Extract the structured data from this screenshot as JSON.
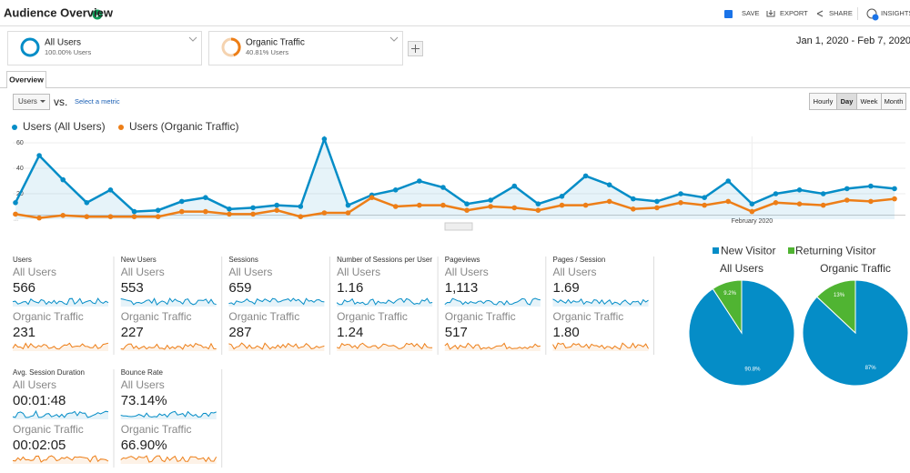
{
  "header": {
    "title": "Audience Overview",
    "actions": [
      "SAVE",
      "EXPORT",
      "SHARE",
      "INSIGHTS"
    ]
  },
  "segments": [
    {
      "name": "All Users",
      "detail": "100.00% Users"
    },
    {
      "name": "Organic Traffic",
      "detail": "40.81% Users"
    }
  ],
  "date_range": "Jan 1, 2020 - Feb 7, 2020",
  "tab": "Overview",
  "controls": {
    "metric": "Users",
    "vs": "vs.",
    "select": "Select a metric",
    "intervals": [
      "Hourly",
      "Day",
      "Week",
      "Month"
    ],
    "selected": "Day"
  },
  "chart_data": [
    {
      "type": "line",
      "series": [
        {
          "name": "Users (All Users)",
          "color": "#058dc7",
          "values": [
            13,
            50,
            31,
            13,
            23,
            6,
            7,
            14,
            17,
            8,
            9,
            11,
            10,
            63,
            11,
            19,
            23,
            30,
            25,
            12,
            15,
            26,
            12,
            18,
            34,
            27,
            16,
            14,
            20,
            17,
            30,
            12,
            20,
            23,
            20,
            24,
            26,
            24
          ]
        },
        {
          "name": "Users (Organic Traffic)",
          "color": "#ed7e17",
          "values": [
            4,
            1,
            3,
            2,
            2,
            2,
            2,
            6,
            6,
            4,
            4,
            7,
            2,
            5,
            5,
            17,
            10,
            11,
            11,
            7,
            10,
            9,
            7,
            11,
            11,
            14,
            8,
            9,
            13,
            11,
            14,
            6,
            13,
            12,
            11,
            15,
            14,
            16
          ]
        }
      ],
      "categories": [
        null,
        null,
        null,
        null,
        null,
        null,
        null,
        null,
        null,
        null,
        null,
        null,
        null,
        null,
        null,
        null,
        null,
        null,
        null,
        null,
        null,
        null,
        null,
        null,
        null,
        null,
        null,
        null,
        null,
        null,
        null,
        "February 2020",
        null,
        null,
        null,
        null,
        null,
        null
      ],
      "ylim": [
        0,
        65
      ],
      "yticks": [
        20,
        40,
        60
      ],
      "grid": true,
      "annotation": "..."
    },
    {
      "type": "pie",
      "title": "All Users",
      "values": [
        90.8,
        9.2
      ],
      "value_labels": [
        "90.8%",
        "9.2%"
      ]
    },
    {
      "type": "pie",
      "title": "Organic Traffic",
      "values": [
        87,
        13
      ],
      "value_labels": [
        "87%",
        "13%"
      ]
    }
  ],
  "pie_legend": [
    {
      "name": "New Visitor",
      "color": "#058dc7"
    },
    {
      "name": "Returning Visitor",
      "color": "#50b432"
    }
  ],
  "metrics": [
    {
      "name": "Users",
      "values": [
        "566",
        "231"
      ]
    },
    {
      "name": "New Users",
      "values": [
        "553",
        "227"
      ]
    },
    {
      "name": "Sessions",
      "values": [
        "659",
        "287"
      ]
    },
    {
      "name": "Number of Sessions per User",
      "values": [
        "1.16",
        "1.24"
      ]
    },
    {
      "name": "Pageviews",
      "values": [
        "1,113",
        "517"
      ]
    },
    {
      "name": "Pages / Session",
      "values": [
        "1.69",
        "1.80"
      ]
    },
    {
      "name": "Avg. Session Duration",
      "values": [
        "00:01:48",
        "00:02:05"
      ]
    },
    {
      "name": "Bounce Rate",
      "values": [
        "73.14%",
        "66.90%"
      ]
    }
  ]
}
